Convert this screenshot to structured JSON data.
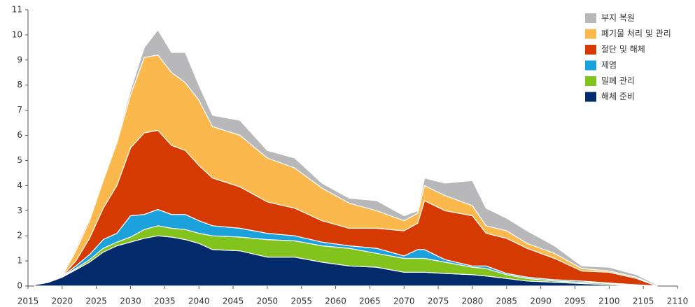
{
  "chart_data": {
    "type": "stacked-area",
    "x": [
      2016,
      2018,
      2020,
      2022,
      2024,
      2026,
      2028,
      2030,
      2032,
      2034,
      2036,
      2038,
      2040,
      2042,
      2046,
      2050,
      2054,
      2058,
      2062,
      2066,
      2070,
      2072,
      2073,
      2076,
      2080,
      2082,
      2085,
      2088,
      2092,
      2096,
      2100,
      2104,
      2107
    ],
    "series": [
      {
        "name": "해체 준비",
        "color": "#032b6b",
        "values": [
          0.05,
          0.15,
          0.35,
          0.65,
          0.95,
          1.35,
          1.6,
          1.75,
          1.9,
          2.0,
          1.95,
          1.85,
          1.7,
          1.45,
          1.4,
          1.15,
          1.15,
          0.95,
          0.8,
          0.75,
          0.55,
          0.55,
          0.55,
          0.5,
          0.45,
          0.4,
          0.3,
          0.2,
          0.15,
          0.1,
          0.05,
          0.02,
          0
        ]
      },
      {
        "name": "밀폐 관리",
        "color": "#82c31d",
        "values": [
          0,
          0,
          0.02,
          0.05,
          0.1,
          0.15,
          0.15,
          0.2,
          0.35,
          0.4,
          0.35,
          0.4,
          0.4,
          0.55,
          0.55,
          0.7,
          0.65,
          0.65,
          0.7,
          0.55,
          0.55,
          0.55,
          0.55,
          0.45,
          0.3,
          0.3,
          0.15,
          0.1,
          0.05,
          0.05,
          0.05,
          0.01,
          0
        ]
      },
      {
        "name": "제염",
        "color": "#1ba1dc",
        "values": [
          0,
          0,
          0.01,
          0.1,
          0.2,
          0.35,
          0.35,
          0.85,
          0.6,
          0.65,
          0.55,
          0.6,
          0.5,
          0.4,
          0.35,
          0.25,
          0.2,
          0.15,
          0.1,
          0.2,
          0.1,
          0.35,
          0.35,
          0.1,
          0.05,
          0.1,
          0.05,
          0.05,
          0.05,
          0.05,
          0.02,
          0.02,
          0
        ]
      },
      {
        "name": "절단 및 해체",
        "color": "#d53a03",
        "values": [
          0,
          0,
          0.01,
          0.2,
          0.65,
          1.25,
          1.9,
          2.7,
          3.25,
          3.15,
          2.75,
          2.55,
          2.2,
          1.9,
          1.65,
          1.25,
          1.1,
          0.85,
          0.7,
          0.8,
          1.0,
          1.05,
          1.95,
          1.95,
          2.0,
          1.3,
          1.4,
          1.15,
          0.85,
          0.4,
          0.43,
          0.25,
          0
        ]
      },
      {
        "name": "폐기물 처리 및 관리",
        "color": "#fbb84c",
        "values": [
          0,
          0,
          0.01,
          0.4,
          0.7,
          1.1,
          1.7,
          2.1,
          3.0,
          3.0,
          2.9,
          2.7,
          2.6,
          2.05,
          2.05,
          1.75,
          1.6,
          1.3,
          1.0,
          0.7,
          0.4,
          0.4,
          0.6,
          0.6,
          0.4,
          0.3,
          0.3,
          0.2,
          0.2,
          0.1,
          0.05,
          0.05,
          0
        ]
      },
      {
        "name": "부지 복원",
        "color": "#b8b8ba",
        "values": [
          0,
          0,
          0,
          0.1,
          0.1,
          0.1,
          0.1,
          0.2,
          0.4,
          1.0,
          0.8,
          1.2,
          0.6,
          0.45,
          0.6,
          0.3,
          0.4,
          0.2,
          0.2,
          0.4,
          0.2,
          0.1,
          0.3,
          0.5,
          1.0,
          0.7,
          0.5,
          0.5,
          0.3,
          0.1,
          0.15,
          0.1,
          0.05
        ]
      }
    ],
    "xlim": [
      2015,
      2110
    ],
    "xticks": [
      2015,
      2020,
      2025,
      2030,
      2035,
      2040,
      2045,
      2050,
      2055,
      2060,
      2065,
      2070,
      2075,
      2080,
      2085,
      2090,
      2095,
      2100,
      2105,
      2110
    ],
    "ylim": [
      0,
      11
    ],
    "yticks": [
      0,
      1,
      2,
      3,
      4,
      5,
      6,
      7,
      8,
      9,
      10,
      11
    ],
    "grid": false,
    "legend": "top-right"
  }
}
